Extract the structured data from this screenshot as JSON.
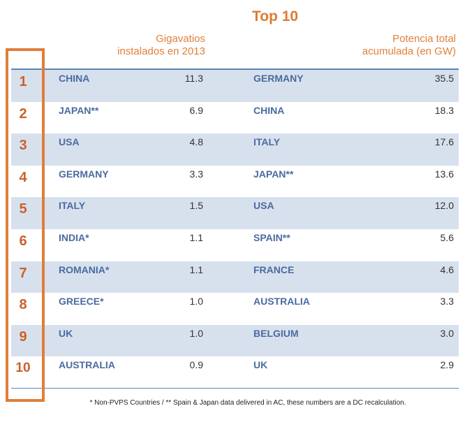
{
  "chart_data": {
    "type": "table",
    "title": "Top 10",
    "columns": [
      {
        "name": "Gigavatios instalados en 2013"
      },
      {
        "name": "Potencia total acumulada (en GW)"
      }
    ],
    "header_left": "Gigavatios\ninstalados en 2013",
    "header_right": "Potencia total\nacumulada (en GW)",
    "rows": [
      {
        "rank": "1",
        "country_2013": "CHINA",
        "value_2013": "11.3",
        "country_total": "GERMANY",
        "value_total": "35.5"
      },
      {
        "rank": "2",
        "country_2013": "JAPAN**",
        "value_2013": "6.9",
        "country_total": "CHINA",
        "value_total": "18.3"
      },
      {
        "rank": "3",
        "country_2013": "USA",
        "value_2013": "4.8",
        "country_total": "ITALY",
        "value_total": "17.6"
      },
      {
        "rank": "4",
        "country_2013": "GERMANY",
        "value_2013": "3.3",
        "country_total": "JAPAN**",
        "value_total": "13.6"
      },
      {
        "rank": "5",
        "country_2013": "ITALY",
        "value_2013": "1.5",
        "country_total": "USA",
        "value_total": "12.0"
      },
      {
        "rank": "6",
        "country_2013": "INDIA*",
        "value_2013": "1.1",
        "country_total": "SPAIN**",
        "value_total": "5.6"
      },
      {
        "rank": "7",
        "country_2013": "ROMANIA*",
        "value_2013": "1.1",
        "country_total": "FRANCE",
        "value_total": "4.6"
      },
      {
        "rank": "8",
        "country_2013": "GREECE*",
        "value_2013": "1.0",
        "country_total": "AUSTRALIA",
        "value_total": "3.3"
      },
      {
        "rank": "9",
        "country_2013": "UK",
        "value_2013": "1.0",
        "country_total": "BELGIUM",
        "value_total": "3.0"
      },
      {
        "rank": "10",
        "country_2013": "AUSTRALIA",
        "value_2013": "0.9",
        "country_total": "UK",
        "value_total": "2.9"
      }
    ],
    "footnote": "* Non-PVPS Countries / ** Spain & Japan data delivered in AC, these numbers are a DC recalculation."
  },
  "colors": {
    "accent": "#e07e3a",
    "rank": "#c8622a",
    "country": "#4a6ba0",
    "row_shade": "#d7e1ee",
    "rule": "#5a85b5"
  }
}
